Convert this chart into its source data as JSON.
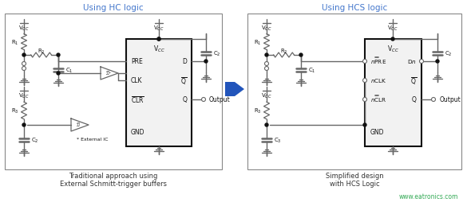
{
  "bg_color": "#ffffff",
  "border_color": "#888888",
  "line_color": "#555555",
  "dark_color": "#111111",
  "gray_line": "#666666",
  "blue_arrow_color": "#2255bb",
  "title_color": "#4477cc",
  "caption_color": "#333333",
  "watermark_color": "#33aa55",
  "left_title": "Using HC logic",
  "right_title": "Using HCS logic",
  "left_caption1": "Traditional approach using",
  "left_caption2": "External Schmitt-trigger buffers",
  "right_caption1": "Simplified design",
  "right_caption2": "with HCS Logic",
  "watermark": "www.eatronics.com"
}
